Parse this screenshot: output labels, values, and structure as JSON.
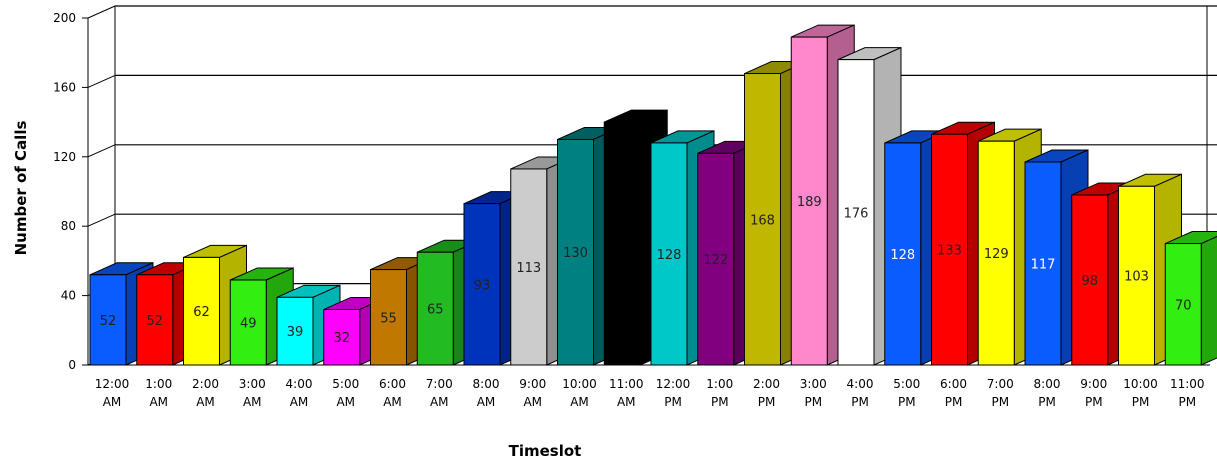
{
  "chart_data": {
    "type": "bar",
    "title": "",
    "xlabel": "Timeslot",
    "ylabel": "Number of Calls",
    "ylim": [
      0,
      200
    ],
    "yticks": [
      0,
      40,
      80,
      120,
      160,
      200
    ],
    "grid": true,
    "categories": [
      [
        "12:00",
        "AM"
      ],
      [
        "1:00",
        "AM"
      ],
      [
        "2:00",
        "AM"
      ],
      [
        "3:00",
        "AM"
      ],
      [
        "4:00",
        "AM"
      ],
      [
        "5:00",
        "AM"
      ],
      [
        "6:00",
        "AM"
      ],
      [
        "7:00",
        "AM"
      ],
      [
        "8:00",
        "AM"
      ],
      [
        "9:00",
        "AM"
      ],
      [
        "10:00",
        "AM"
      ],
      [
        "11:00",
        "AM"
      ],
      [
        "12:00",
        "PM"
      ],
      [
        "1:00",
        "PM"
      ],
      [
        "2:00",
        "PM"
      ],
      [
        "3:00",
        "PM"
      ],
      [
        "4:00",
        "PM"
      ],
      [
        "5:00",
        "PM"
      ],
      [
        "6:00",
        "PM"
      ],
      [
        "7:00",
        "PM"
      ],
      [
        "8:00",
        "PM"
      ],
      [
        "9:00",
        "PM"
      ],
      [
        "10:00",
        "PM"
      ],
      [
        "11:00",
        "PM"
      ]
    ],
    "values": [
      52,
      52,
      62,
      49,
      39,
      32,
      55,
      65,
      93,
      113,
      130,
      140,
      128,
      122,
      168,
      189,
      176,
      128,
      133,
      129,
      117,
      98,
      103,
      70
    ],
    "value_labels": [
      "52",
      "52",
      "62",
      "49",
      "39",
      "32",
      "55",
      "65",
      "93",
      "113",
      "130",
      "",
      "128",
      "122",
      "168",
      "189",
      "176",
      "128",
      "133",
      "129",
      "117",
      "98",
      "103",
      "70"
    ],
    "colors": [
      "#0a5cff",
      "#ff0000",
      "#ffff00",
      "#33ee11",
      "#00ffff",
      "#ff00ff",
      "#c07800",
      "#22bb22",
      "#0033bb",
      "#cccccc",
      "#008080",
      "#000000",
      "#00c8c8",
      "#800080",
      "#c0b800",
      "#ff88cc",
      "#ffffff",
      "#0a5cff",
      "#ff0000",
      "#ffff00",
      "#0a5cff",
      "#ff0000",
      "#ffff00",
      "#33ee11"
    ],
    "label_colors": [
      "#000",
      "#000",
      "#000",
      "#000",
      "#000",
      "#000",
      "#000",
      "#000",
      "#000",
      "#000",
      "#000",
      "#fff",
      "#000",
      "#000",
      "#000",
      "#000",
      "#000",
      "#fff",
      "#000",
      "#000",
      "#fff",
      "#000",
      "#000",
      "#000"
    ]
  }
}
